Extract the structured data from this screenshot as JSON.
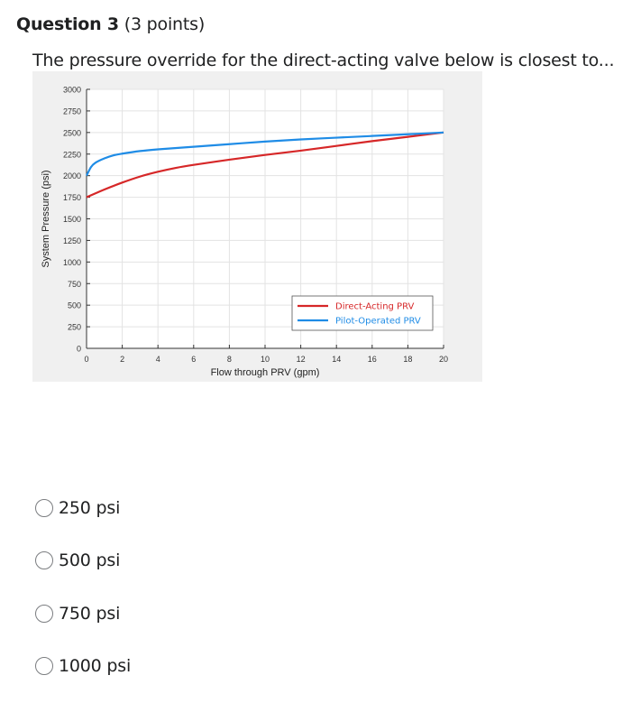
{
  "question": {
    "title": "Question 3",
    "points": "(3 points)",
    "text": "The pressure override for the direct-acting valve below is closest to..."
  },
  "answers": [
    {
      "label": "250 psi",
      "selected": false
    },
    {
      "label": "500 psi",
      "selected": false
    },
    {
      "label": "750 psi",
      "selected": false
    },
    {
      "label": "1000 psi",
      "selected": false
    }
  ],
  "chart_data": {
    "type": "line",
    "title": "",
    "xlabel": "Flow through PRV (gpm)",
    "ylabel": "System Pressure (psi)",
    "xlim": [
      0,
      20
    ],
    "ylim": [
      0,
      3000
    ],
    "xticks": [
      0,
      2,
      4,
      6,
      8,
      10,
      12,
      14,
      16,
      18,
      20
    ],
    "yticks": [
      0,
      250,
      500,
      750,
      1000,
      1250,
      1500,
      1750,
      2000,
      2250,
      2500,
      2750,
      3000
    ],
    "grid": true,
    "legend_position": "lower-right",
    "colors": {
      "direct": "#d62728",
      "pilot": "#1f8ce6",
      "plot_bg": "#ffffff",
      "figure_bg": "#f0f0f0"
    },
    "series": [
      {
        "name": "Direct-Acting PRV",
        "color": "#d62728",
        "x": [
          0,
          1,
          2,
          3,
          4,
          5,
          6,
          8,
          10,
          12,
          14,
          16,
          18,
          20
        ],
        "y": [
          1750,
          1840,
          1920,
          1990,
          2045,
          2090,
          2125,
          2185,
          2240,
          2290,
          2345,
          2400,
          2450,
          2500
        ]
      },
      {
        "name": "Pilot-Operated PRV",
        "color": "#1f8ce6",
        "x": [
          0,
          0.25,
          0.5,
          1,
          1.5,
          2,
          3,
          4,
          6,
          8,
          10,
          12,
          14,
          16,
          18,
          20
        ],
        "y": [
          2000,
          2100,
          2150,
          2200,
          2235,
          2255,
          2285,
          2305,
          2335,
          2365,
          2395,
          2420,
          2440,
          2460,
          2480,
          2500
        ]
      }
    ]
  }
}
